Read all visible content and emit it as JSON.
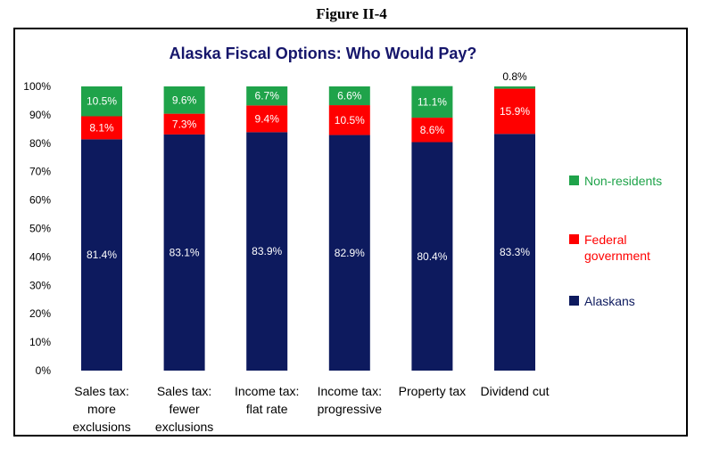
{
  "figure_label": "Figure II-4",
  "chart_data": {
    "type": "bar",
    "stacked": true,
    "title": "Alaska Fiscal Options:  Who Would Pay?",
    "categories": [
      [
        "Sales tax:",
        "more",
        "exclusions"
      ],
      [
        "Sales tax:",
        "fewer",
        "exclusions"
      ],
      [
        "Income tax:",
        "flat rate"
      ],
      [
        "Income tax:",
        "progressive"
      ],
      [
        "Property tax"
      ],
      [
        "Dividend cut"
      ]
    ],
    "series": [
      {
        "name": "Alaskans",
        "color": "#0d1a5e",
        "label_color": "#ffffff",
        "values": [
          81.4,
          83.1,
          83.9,
          82.9,
          80.4,
          83.3
        ],
        "labels": [
          "81.4%",
          "83.1%",
          "83.9%",
          "82.9%",
          "80.4%",
          "83.3%"
        ]
      },
      {
        "name": "Federal government",
        "legend_lines": [
          "Federal",
          "government"
        ],
        "color": "#ff0000",
        "label_color": "#ffffff",
        "values": [
          8.1,
          7.3,
          9.4,
          10.5,
          8.6,
          15.9
        ],
        "labels": [
          "8.1%",
          "7.3%",
          "9.4%",
          "10.5%",
          "8.6%",
          "15.9%"
        ]
      },
      {
        "name": "Non-residents",
        "color": "#1fa34a",
        "label_color": "#ffffff",
        "values": [
          10.5,
          9.6,
          6.7,
          6.6,
          11.1,
          0.8
        ],
        "labels": [
          "10.5%",
          "9.6%",
          "6.7%",
          "6.6%",
          "11.1%",
          "0.8%"
        ]
      }
    ],
    "ylim": [
      0,
      100
    ],
    "yticks": [
      0,
      10,
      20,
      30,
      40,
      50,
      60,
      70,
      80,
      90,
      100
    ],
    "ytick_labels": [
      "0%",
      "10%",
      "20%",
      "30%",
      "40%",
      "50%",
      "60%",
      "70%",
      "80%",
      "90%",
      "100%"
    ],
    "xlabel": "",
    "ylabel": "",
    "grid": false,
    "legend_position": "right"
  }
}
